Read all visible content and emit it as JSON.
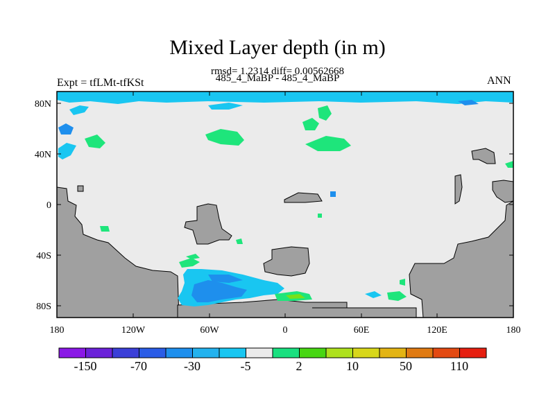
{
  "title": "Mixed Layer depth (in m)",
  "stats_line": "rmsd= 1.2314 diff= 0.00562668",
  "experiment_line": "485_4_MaBP - 485_4_MaBP",
  "left_label": "Expt = tfLMt-tfKSt",
  "right_label": "ANN",
  "x_ticks": [
    "180",
    "120W",
    "60W",
    "0",
    "60E",
    "120E",
    "180"
  ],
  "y_ticks": [
    "80N",
    "40N",
    "0",
    "40S",
    "80S"
  ],
  "colors": {
    "land": "#a0a0a0",
    "ocean_neutral": "#ebebeb",
    "light_blue": "#19c6f1",
    "mid_blue": "#1e8fed",
    "green": "#1ee57b",
    "green_yellow": "#78e11a"
  },
  "colorbar": {
    "colors": [
      "#8a18e6",
      "#6b22d9",
      "#3b3fd8",
      "#2a5ce6",
      "#1e8fed",
      "#23b2ee",
      "#19c6f1",
      "#ebebeb",
      "#19e07f",
      "#47d613",
      "#aee11e",
      "#d8d71a",
      "#e3b414",
      "#e07a12",
      "#e34a12",
      "#e61f10"
    ],
    "labels": [
      "-150",
      "-70",
      "-30",
      "-5",
      "2",
      "10",
      "50",
      "110"
    ]
  }
}
